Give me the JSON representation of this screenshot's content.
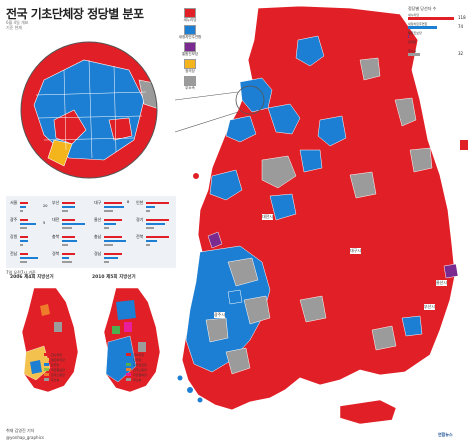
{
  "header": {
    "title": "전국 기초단체장 정당별 분포",
    "subtitle_lines": [
      "6월 4일 개표",
      "기준 현재"
    ]
  },
  "legend_parties": [
    {
      "label": "새누리당",
      "color": "#e11f26"
    },
    {
      "label": "새정치민주연합",
      "color": "#1d7fd3"
    },
    {
      "label": "통합진보당",
      "color": "#7b2a8f"
    },
    {
      "label": "정의당",
      "color": "#f4b41b"
    },
    {
      "label": "무소속",
      "color": "#9b9b9b"
    }
  ],
  "totals": {
    "title": "정당별 당선자 수",
    "rows": [
      {
        "label": "새누리당",
        "value": "118",
        "color": "#e11f26",
        "fraction": 1.0
      },
      {
        "label": "새정치민주연합",
        "value": "74",
        "color": "#1d7fd3",
        "fraction": 0.63
      },
      {
        "label": "통합진보당",
        "value": "",
        "color": "#7b2a8f",
        "fraction": 0.02
      },
      {
        "label": "정의당",
        "value": "",
        "color": "#f4b41b",
        "fraction": 0.0
      },
      {
        "label": "무소속",
        "value": "32",
        "color": "#9b9b9b",
        "fraction": 0.27
      }
    ]
  },
  "regions": [
    {
      "name": "서울",
      "red": "",
      "blue": "20",
      "grey": ""
    },
    {
      "name": "부산",
      "red": "",
      "blue": "",
      "grey": ""
    },
    {
      "name": "대구",
      "red": "8",
      "blue": "",
      "grey": ""
    },
    {
      "name": "인천",
      "red": "",
      "blue": "",
      "grey": ""
    },
    {
      "name": "광주",
      "red": "",
      "blue": "5",
      "grey": ""
    },
    {
      "name": "대전",
      "red": "",
      "blue": "",
      "grey": ""
    },
    {
      "name": "울산",
      "red": "",
      "blue": "",
      "grey": ""
    },
    {
      "name": "경기",
      "red": "",
      "blue": "",
      "grey": ""
    },
    {
      "name": "강원",
      "red": "",
      "blue": "",
      "grey": ""
    },
    {
      "name": "충북",
      "red": "",
      "blue": "",
      "grey": ""
    },
    {
      "name": "충남",
      "red": "",
      "blue": "",
      "grey": ""
    },
    {
      "name": "전북",
      "red": "",
      "blue": "",
      "grey": ""
    },
    {
      "name": "전남",
      "red": "",
      "blue": "",
      "grey": ""
    },
    {
      "name": "경북",
      "red": "",
      "blue": "",
      "grey": ""
    },
    {
      "name": "경남",
      "red": "",
      "blue": "",
      "grey": ""
    }
  ],
  "inset_note": "7일 오전7시 기준",
  "mini_maps": [
    {
      "title": "2006 제4회 지방선거"
    },
    {
      "title": "2010 제5회 지방선거"
    }
  ],
  "mini_legend": [
    "한나라당",
    "열린우리당",
    "민주당",
    "국민중심당",
    "민주노동당",
    "무소속"
  ],
  "mini_legend_colors": [
    "#e11f26",
    "#f2c14e",
    "#1d7fd3",
    "#8bc34a",
    "#ee7c2b",
    "#9b9b9b"
  ],
  "mini_legend2": [
    "한나라당",
    "민주당",
    "자유선진당",
    "민주노동당",
    "국민참여당",
    "무소속"
  ],
  "mini_legend2_colors": [
    "#e11f26",
    "#1d7fd3",
    "#4caf50",
    "#ee7c2b",
    "#e91e9a",
    "#9b9b9b"
  ],
  "place_labels": [
    "대전시",
    "광주시",
    "대구시",
    "울산시",
    "부산시"
  ],
  "credit_lines": [
    "취재 김영진 기자",
    "@yonhap_graphics"
  ],
  "logo_text": "연합뉴스"
}
